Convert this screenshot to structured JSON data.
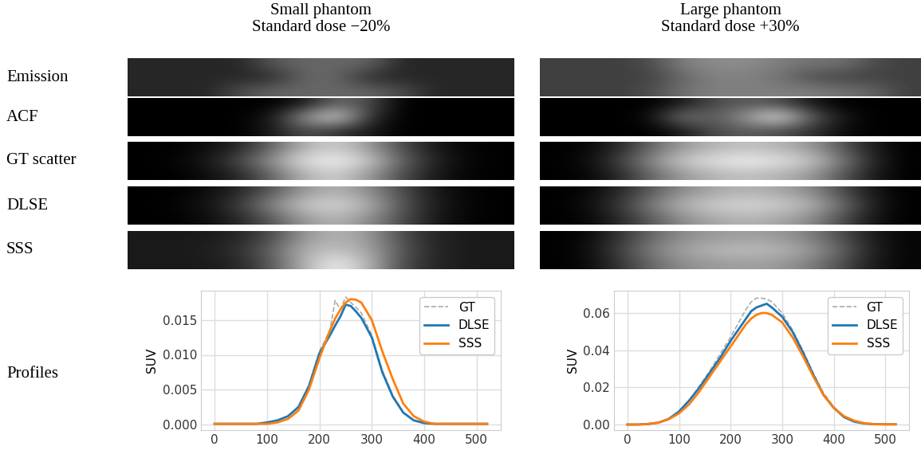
{
  "row_labels": [
    "Emission",
    "ACF",
    "GT scatter",
    "DLSE",
    "SSS",
    "Profiles"
  ],
  "color_range": [
    0,
    1
  ],
  "chart_data": [
    {
      "type": "line",
      "title": "Small phantom\nStandard dose −20%",
      "images": [
        [
          [
            0.15,
            0.15,
            0.15,
            0.15,
            0.35,
            0.4,
            0.4,
            0.4,
            0.15,
            0.15,
            0.15,
            0.15
          ],
          [
            0.15,
            0.15,
            0.15,
            0.15,
            0.15,
            0.4,
            0.4,
            0.15,
            0.15,
            0.15,
            0.15,
            0.15
          ],
          [
            0.15,
            0.15,
            0.15,
            0.3,
            0.4,
            0.4,
            0.4,
            0.4,
            0.3,
            0.15,
            0.15,
            0.15
          ]
        ],
        [
          [
            0,
            0,
            0,
            0,
            0,
            0.1,
            0.4,
            0.3,
            0,
            0,
            0,
            0
          ],
          [
            0,
            0,
            0,
            0,
            0.1,
            0.6,
            0.9,
            0.2,
            0,
            0,
            0,
            0
          ],
          [
            0,
            0,
            0,
            0,
            0.1,
            0.3,
            0.2,
            0.1,
            0,
            0,
            0,
            0
          ]
        ],
        [
          [
            0,
            0,
            0.05,
            0.15,
            0.4,
            0.7,
            0.8,
            0.6,
            0.3,
            0.1,
            0.02,
            0
          ],
          [
            0,
            0.02,
            0.1,
            0.3,
            0.6,
            0.9,
            0.95,
            0.8,
            0.4,
            0.15,
            0.03,
            0
          ],
          [
            0,
            0,
            0.05,
            0.15,
            0.4,
            0.7,
            0.8,
            0.6,
            0.3,
            0.1,
            0.02,
            0
          ]
        ],
        [
          [
            0,
            0,
            0.05,
            0.15,
            0.35,
            0.6,
            0.7,
            0.55,
            0.3,
            0.1,
            0.02,
            0
          ],
          [
            0,
            0.02,
            0.08,
            0.25,
            0.55,
            0.8,
            0.85,
            0.7,
            0.35,
            0.12,
            0.03,
            0
          ],
          [
            0,
            0,
            0.05,
            0.15,
            0.35,
            0.6,
            0.7,
            0.55,
            0.3,
            0.1,
            0.02,
            0
          ]
        ],
        [
          [
            0.1,
            0.1,
            0.1,
            0.15,
            0.3,
            0.6,
            0.7,
            0.6,
            0.3,
            0.15,
            0.1,
            0.1
          ],
          [
            0.1,
            0.1,
            0.12,
            0.2,
            0.4,
            0.7,
            0.75,
            0.65,
            0.35,
            0.15,
            0.1,
            0.1
          ],
          [
            0.1,
            0.1,
            0.1,
            0.15,
            0.35,
            0.7,
            0.95,
            0.7,
            0.3,
            0.15,
            0.1,
            0.1
          ]
        ]
      ],
      "x": [
        0,
        20,
        40,
        60,
        80,
        100,
        120,
        140,
        160,
        180,
        200,
        220,
        230,
        240,
        250,
        260,
        270,
        280,
        300,
        320,
        340,
        360,
        380,
        400,
        420,
        440,
        460,
        480,
        500,
        520
      ],
      "series": [
        {
          "name": "GT",
          "color": "#aaaaaa",
          "line_style": "dashed",
          "values": [
            0.0001,
            0.0001,
            0.0001,
            0.0001,
            0.0001,
            0.0003,
            0.0006,
            0.0012,
            0.0026,
            0.0057,
            0.0105,
            0.0135,
            0.0178,
            0.0165,
            0.0183,
            0.0175,
            0.0168,
            0.016,
            0.0128,
            0.0078,
            0.0042,
            0.0018,
            0.0006,
            0.0002,
            0.0001,
            0.0001,
            0.0001,
            0.0001,
            0.0001,
            0.0001
          ]
        },
        {
          "name": "DLSE",
          "color": "#1f77b4",
          "line_style": "solid",
          "values": [
            0.0001,
            0.0001,
            0.0001,
            0.0001,
            0.0001,
            0.0003,
            0.0006,
            0.0012,
            0.0025,
            0.0055,
            0.0102,
            0.0128,
            0.0142,
            0.0155,
            0.0172,
            0.017,
            0.0162,
            0.0153,
            0.0125,
            0.0075,
            0.004,
            0.0017,
            0.0006,
            0.0002,
            0.0001,
            0.0001,
            0.0001,
            0.0001,
            0.0001,
            0.0001
          ]
        },
        {
          "name": "SSS",
          "color": "#ff7f0e",
          "line_style": "solid",
          "values": [
            0.0001,
            0.0001,
            0.0001,
            0.0001,
            0.0001,
            0.0001,
            0.0003,
            0.0008,
            0.002,
            0.005,
            0.0095,
            0.0135,
            0.0152,
            0.0165,
            0.0175,
            0.018,
            0.0179,
            0.0175,
            0.015,
            0.0105,
            0.0065,
            0.003,
            0.0012,
            0.0004,
            0.0001,
            0.0001,
            0.0001,
            0.0001,
            0.0001,
            0.0001
          ]
        }
      ],
      "y_label": "SUV",
      "xlim": [
        -26,
        546
      ],
      "ylim": [
        -0.0008,
        0.0192
      ],
      "xticks": [
        0,
        100,
        200,
        300,
        400,
        500
      ],
      "yticks": [
        {
          "value": 0,
          "label": "0.000"
        },
        {
          "value": 0.005,
          "label": "0.005"
        },
        {
          "value": 0.01,
          "label": "0.010"
        },
        {
          "value": 0.015,
          "label": "0.015"
        }
      ],
      "grid": true,
      "legend": "upper right"
    },
    {
      "type": "line",
      "title": "Large phantom\nStandard dose +30%",
      "images": [
        [
          [
            0.25,
            0.25,
            0.25,
            0.3,
            0.5,
            0.55,
            0.55,
            0.5,
            0.45,
            0.45,
            0.3,
            0.25
          ],
          [
            0.25,
            0.25,
            0.25,
            0.25,
            0.4,
            0.5,
            0.5,
            0.45,
            0.3,
            0.25,
            0.25,
            0.25
          ],
          [
            0.25,
            0.25,
            0.25,
            0.3,
            0.45,
            0.5,
            0.5,
            0.5,
            0.5,
            0.45,
            0.4,
            0.25
          ]
        ],
        [
          [
            0,
            0,
            0,
            0,
            0.1,
            0.3,
            0.35,
            0.3,
            0.1,
            0,
            0,
            0
          ],
          [
            0,
            0,
            0,
            0.05,
            0.5,
            0.35,
            0.6,
            0.95,
            0.4,
            0.1,
            0,
            0
          ],
          [
            0,
            0,
            0,
            0,
            0.1,
            0.3,
            0.35,
            0.3,
            0.2,
            0.05,
            0,
            0
          ]
        ],
        [
          [
            0,
            0.02,
            0.15,
            0.4,
            0.6,
            0.7,
            0.75,
            0.7,
            0.6,
            0.35,
            0.1,
            0
          ],
          [
            0,
            0.05,
            0.25,
            0.55,
            0.8,
            0.9,
            0.95,
            0.9,
            0.8,
            0.5,
            0.15,
            0
          ],
          [
            0,
            0.02,
            0.15,
            0.4,
            0.6,
            0.7,
            0.75,
            0.7,
            0.6,
            0.35,
            0.1,
            0
          ]
        ],
        [
          [
            0,
            0.02,
            0.15,
            0.35,
            0.55,
            0.65,
            0.7,
            0.65,
            0.55,
            0.3,
            0.08,
            0
          ],
          [
            0,
            0.05,
            0.22,
            0.5,
            0.72,
            0.82,
            0.85,
            0.82,
            0.72,
            0.45,
            0.12,
            0
          ],
          [
            0,
            0.02,
            0.15,
            0.35,
            0.55,
            0.65,
            0.7,
            0.65,
            0.55,
            0.3,
            0.08,
            0
          ]
        ],
        [
          [
            0,
            0.03,
            0.2,
            0.4,
            0.55,
            0.6,
            0.62,
            0.6,
            0.5,
            0.3,
            0.1,
            0.02
          ],
          [
            0,
            0.05,
            0.25,
            0.5,
            0.65,
            0.72,
            0.75,
            0.72,
            0.62,
            0.4,
            0.12,
            0.02
          ],
          [
            0,
            0.03,
            0.2,
            0.4,
            0.55,
            0.6,
            0.62,
            0.6,
            0.5,
            0.3,
            0.1,
            0.02
          ]
        ]
      ],
      "x": [
        0,
        20,
        40,
        60,
        80,
        100,
        120,
        140,
        160,
        180,
        200,
        220,
        230,
        240,
        250,
        260,
        270,
        280,
        300,
        320,
        340,
        360,
        380,
        400,
        420,
        440,
        460,
        480,
        500,
        520
      ],
      "series": [
        {
          "name": "GT",
          "color": "#aaaaaa",
          "line_style": "dashed",
          "values": [
            0,
            0,
            0.0003,
            0.001,
            0.003,
            0.007,
            0.013,
            0.021,
            0.029,
            0.038,
            0.047,
            0.057,
            0.062,
            0.066,
            0.068,
            0.068,
            0.0675,
            0.066,
            0.06,
            0.051,
            0.04,
            0.028,
            0.017,
            0.0095,
            0.0042,
            0.0016,
            0.0005,
            0.0002,
            0.0001,
            0.0001
          ]
        },
        {
          "name": "DLSE",
          "color": "#1f77b4",
          "line_style": "solid",
          "values": [
            0,
            0,
            0.0003,
            0.001,
            0.003,
            0.007,
            0.013,
            0.02,
            0.028,
            0.036,
            0.045,
            0.053,
            0.057,
            0.061,
            0.063,
            0.064,
            0.065,
            0.063,
            0.058,
            0.05,
            0.039,
            0.027,
            0.016,
            0.009,
            0.004,
            0.0015,
            0.0005,
            0.0002,
            0.0001,
            0.0001
          ]
        },
        {
          "name": "SSS",
          "color": "#ff7f0e",
          "line_style": "solid",
          "values": [
            0,
            0,
            0.0003,
            0.001,
            0.0028,
            0.006,
            0.011,
            0.018,
            0.026,
            0.034,
            0.042,
            0.05,
            0.054,
            0.057,
            0.059,
            0.06,
            0.06,
            0.059,
            0.055,
            0.047,
            0.037,
            0.026,
            0.016,
            0.009,
            0.0045,
            0.002,
            0.0007,
            0.0002,
            0.0001,
            0.0001
          ]
        }
      ],
      "y_label": "SUV",
      "xlim": [
        -26,
        546
      ],
      "ylim": [
        -0.003,
        0.072
      ],
      "xticks": [
        0,
        100,
        200,
        300,
        400,
        500
      ],
      "yticks": [
        {
          "value": 0,
          "label": "0.00"
        },
        {
          "value": 0.02,
          "label": "0.02"
        },
        {
          "value": 0.04,
          "label": "0.04"
        },
        {
          "value": 0.06,
          "label": "0.06"
        }
      ],
      "grid": true,
      "legend": "upper right"
    }
  ]
}
